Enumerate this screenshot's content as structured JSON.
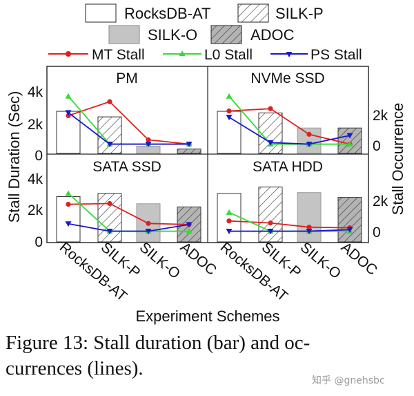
{
  "chart_data": {
    "type": "bar",
    "categories": [
      "RocksDB-AT",
      "SILK-P",
      "SILK-O",
      "ADOC"
    ],
    "xlabel": "Experiment Schemes",
    "ylabel": "Stall Duration (Sec)",
    "ylabel_right": "Stall Occurrence",
    "ylim": [
      0,
      4000
    ],
    "yticks": [
      "0",
      "2k",
      "4k"
    ],
    "ylim_right": [
      -700,
      3500
    ],
    "yticks_right": [
      "0",
      "2k"
    ],
    "legend": {
      "placement": "top",
      "bar_entries": [
        "RocksDB-AT",
        "SILK-P",
        "SILK-O",
        "ADOC"
      ],
      "line_entries": [
        "MT Stall",
        "L0 Stall",
        "PS Stall"
      ]
    },
    "colors": {
      "MT Stall": "#e02020",
      "L0 Stall": "#33dd33",
      "PS Stall": "#1a1acc",
      "RocksDB-AT": "#ffffff",
      "SILK-P": "#ffffff",
      "SILK-O": "#c4c4c4",
      "ADOC": "#b0b0b0"
    },
    "panels": [
      {
        "title": "PM",
        "bars": [
          2650,
          2300,
          450,
          280
        ],
        "lines": {
          "MT Stall": [
            1850,
            2750,
            300,
            20
          ],
          "L0 Stall": [
            3100,
            20,
            20,
            20
          ],
          "PS Stall": [
            2050,
            20,
            20,
            20
          ]
        }
      },
      {
        "title": "NVMe SSD",
        "bars": [
          2650,
          2550,
          1600,
          1600
        ],
        "lines": {
          "MT Stall": [
            2150,
            2300,
            650,
            20
          ],
          "L0 Stall": [
            3100,
            20,
            20,
            20
          ],
          "PS Stall": [
            1750,
            120,
            20,
            580
          ]
        }
      },
      {
        "title": "SATA SSD",
        "bars": [
          2850,
          3050,
          2400,
          2200
        ],
        "lines": {
          "MT Stall": [
            1750,
            1800,
            520,
            450
          ],
          "L0 Stall": [
            2450,
            20,
            20,
            20
          ],
          "PS Stall": [
            500,
            20,
            20,
            450
          ]
        }
      },
      {
        "title": "SATA HDD",
        "bars": [
          3050,
          3450,
          3100,
          2800
        ],
        "lines": {
          "MT Stall": [
            680,
            550,
            280,
            240
          ],
          "L0 Stall": [
            1230,
            20,
            20,
            20
          ],
          "PS Stall": [
            20,
            20,
            20,
            120
          ]
        }
      }
    ]
  },
  "caption": {
    "line1": "Figure 13: Stall duration (bar) and oc-",
    "line2": "currences (lines)."
  },
  "watermark": "知乎 @gnehsbc"
}
